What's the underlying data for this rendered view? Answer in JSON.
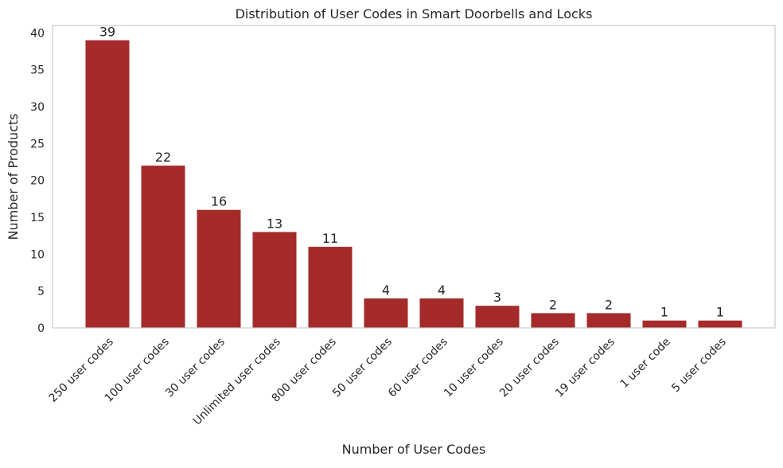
{
  "chart_data": {
    "type": "bar",
    "title": "Distribution of User Codes in Smart Doorbells and Locks",
    "xlabel": "Number of User Codes",
    "ylabel": "Number of Products",
    "categories": [
      "250 user codes",
      "100 user codes",
      "30 user codes",
      "Unlimited user codes",
      "800 user codes",
      "50 user codes",
      "60 user codes",
      "10 user codes",
      "20 user codes",
      "19 user codes",
      "1 user code",
      "5 user codes"
    ],
    "values": [
      39,
      22,
      16,
      13,
      11,
      4,
      4,
      3,
      2,
      2,
      1,
      1
    ],
    "ylim": [
      0,
      41
    ],
    "yticks": [
      0,
      5,
      10,
      15,
      20,
      25,
      30,
      35,
      40
    ],
    "bar_color": "#a52a2a",
    "axes_edge_color": "#cccccc",
    "grid": false,
    "legend": "none"
  }
}
